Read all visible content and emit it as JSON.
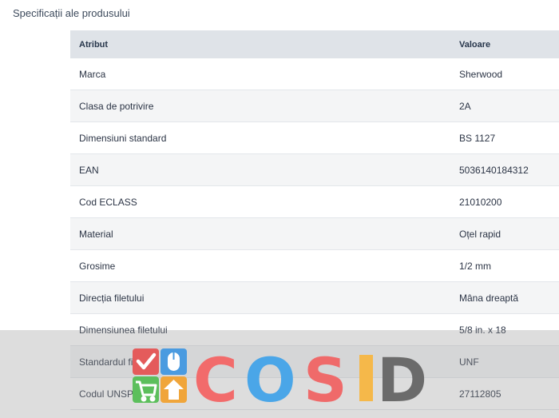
{
  "section": {
    "title": "Specificații ale produsului"
  },
  "table": {
    "headers": [
      "Atribut",
      "Valoare"
    ],
    "rows": [
      {
        "attr": "Marca",
        "value": "Sherwood"
      },
      {
        "attr": "Clasa de potrivire",
        "value": "2A"
      },
      {
        "attr": "Dimensiuni standard",
        "value": "BS 1127"
      },
      {
        "attr": "EAN",
        "value": "5036140184312"
      },
      {
        "attr": "Cod ECLASS",
        "value": "21010200"
      },
      {
        "attr": "Material",
        "value": "Oțel rapid"
      },
      {
        "attr": "Grosime",
        "value": "1/2 mm"
      },
      {
        "attr": "Direcția filetului",
        "value": "Mâna dreaptă"
      },
      {
        "attr": "Dimensiunea filetului",
        "value": "5/8 in. x 18"
      },
      {
        "attr": "Standardul filetului",
        "value": "UNF"
      },
      {
        "attr": "Codul UNSPSC",
        "value": "27112805"
      }
    ]
  },
  "watermark": {
    "text": "COSID",
    "colors": {
      "C": "#f26b6b",
      "O": "#4aa6e8",
      "S": "#ef6a6a",
      "I": "#f5b84a",
      "D": "#6b6b6b",
      "tile_red": "#e45b5b",
      "tile_blue": "#4a9be0",
      "tile_green": "#5cbf5c",
      "tile_orange": "#f0a53a"
    },
    "icons": [
      "checkmark-icon",
      "mouse-icon",
      "shopping-cart-icon",
      "home-upload-icon"
    ]
  }
}
